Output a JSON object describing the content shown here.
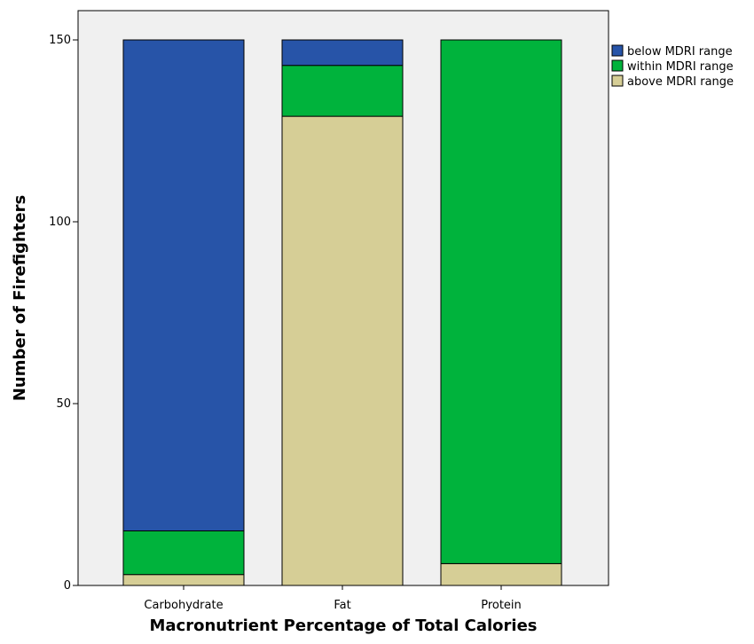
{
  "chart_data": {
    "type": "bar",
    "stacked": true,
    "categories": [
      "Carbohydrate",
      "Fat",
      "Protein"
    ],
    "series": [
      {
        "name": "above MDRI range",
        "values": [
          3,
          129,
          6
        ],
        "color": "#d6ce96"
      },
      {
        "name": "within MDRI range",
        "values": [
          12,
          14,
          144
        ],
        "color": "#00b33c"
      },
      {
        "name": "below MDRI range",
        "values": [
          135,
          7,
          0
        ],
        "color": "#2754a8"
      }
    ],
    "legend_order": [
      "below MDRI range",
      "within MDRI range",
      "above MDRI range"
    ],
    "xlabel": "Macronutrient Percentage of Total Calories",
    "ylabel": "Number of Firefighters",
    "ylim": [
      0,
      150
    ],
    "yticks": [
      0,
      50,
      100,
      150
    ],
    "grid": false,
    "legend_position": "right",
    "plot_background": "#f0f0f0"
  }
}
